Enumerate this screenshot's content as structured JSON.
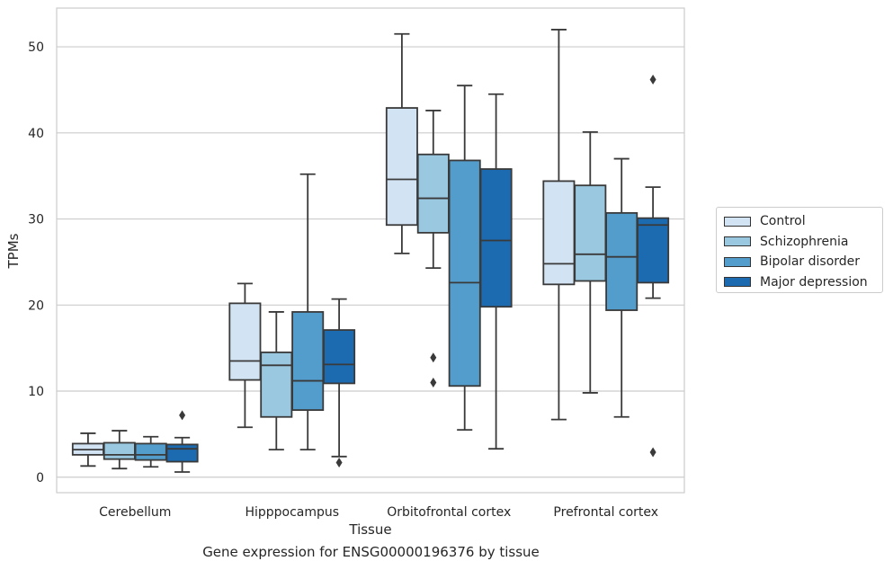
{
  "caption": "Gene expression for ENSG00000196376 by tissue",
  "chart_data": {
    "type": "box",
    "xlabel": "Tissue",
    "ylabel": "TPMs",
    "ylim": [
      -1.8,
      54.5
    ],
    "yticks": [
      0,
      10,
      20,
      30,
      40,
      50
    ],
    "grid": "horizontal",
    "legend_position": "right",
    "categories": [
      "Cerebellum",
      "Hipppocampus",
      "Orbitofrontal cortex",
      "Prefrontal cortex"
    ],
    "series": [
      {
        "name": "Control",
        "color": "#d2e3f3",
        "boxes": [
          {
            "whisker_low": 1.3,
            "q1": 2.6,
            "median": 3.2,
            "q3": 3.9,
            "whisker_high": 5.1,
            "outliers": []
          },
          {
            "whisker_low": 5.8,
            "q1": 11.3,
            "median": 13.5,
            "q3": 20.2,
            "whisker_high": 22.5,
            "outliers": []
          },
          {
            "whisker_low": 26.0,
            "q1": 29.3,
            "median": 34.6,
            "q3": 42.9,
            "whisker_high": 51.5,
            "outliers": []
          },
          {
            "whisker_low": 6.7,
            "q1": 22.4,
            "median": 24.8,
            "q3": 34.4,
            "whisker_high": 52.0,
            "outliers": []
          }
        ]
      },
      {
        "name": "Schizophrenia",
        "color": "#9ac8e0",
        "boxes": [
          {
            "whisker_low": 1.0,
            "q1": 2.1,
            "median": 2.6,
            "q3": 4.0,
            "whisker_high": 5.4,
            "outliers": []
          },
          {
            "whisker_low": 3.2,
            "q1": 7.0,
            "median": 13.0,
            "q3": 14.5,
            "whisker_high": 19.2,
            "outliers": []
          },
          {
            "whisker_low": 24.3,
            "q1": 28.4,
            "median": 32.4,
            "q3": 37.5,
            "whisker_high": 42.6,
            "outliers": [
              13.9,
              11.0
            ]
          },
          {
            "whisker_low": 9.8,
            "q1": 22.8,
            "median": 25.9,
            "q3": 33.9,
            "whisker_high": 40.1,
            "outliers": []
          }
        ]
      },
      {
        "name": "Bipolar disorder",
        "color": "#529dcc",
        "boxes": [
          {
            "whisker_low": 1.2,
            "q1": 2.0,
            "median": 2.6,
            "q3": 3.9,
            "whisker_high": 4.7,
            "outliers": []
          },
          {
            "whisker_low": 3.2,
            "q1": 7.8,
            "median": 11.2,
            "q3": 19.2,
            "whisker_high": 35.2,
            "outliers": []
          },
          {
            "whisker_low": 5.5,
            "q1": 10.6,
            "median": 22.6,
            "q3": 36.8,
            "whisker_high": 45.5,
            "outliers": []
          },
          {
            "whisker_low": 7.0,
            "q1": 19.4,
            "median": 25.6,
            "q3": 30.7,
            "whisker_high": 37.0,
            "outliers": []
          }
        ]
      },
      {
        "name": "Major depression",
        "color": "#1c6aaf",
        "boxes": [
          {
            "whisker_low": 0.6,
            "q1": 1.8,
            "median": 3.3,
            "q3": 3.8,
            "whisker_high": 4.6,
            "outliers": [
              7.2
            ]
          },
          {
            "whisker_low": 2.4,
            "q1": 10.9,
            "median": 13.1,
            "q3": 17.1,
            "whisker_high": 20.7,
            "outliers": [
              1.7
            ]
          },
          {
            "whisker_low": 3.3,
            "q1": 19.8,
            "median": 27.5,
            "q3": 35.8,
            "whisker_high": 44.5,
            "outliers": []
          },
          {
            "whisker_low": 20.8,
            "q1": 22.6,
            "median": 29.3,
            "q3": 30.1,
            "whisker_high": 33.7,
            "outliers": [
              46.2,
              2.9
            ]
          }
        ]
      }
    ]
  }
}
